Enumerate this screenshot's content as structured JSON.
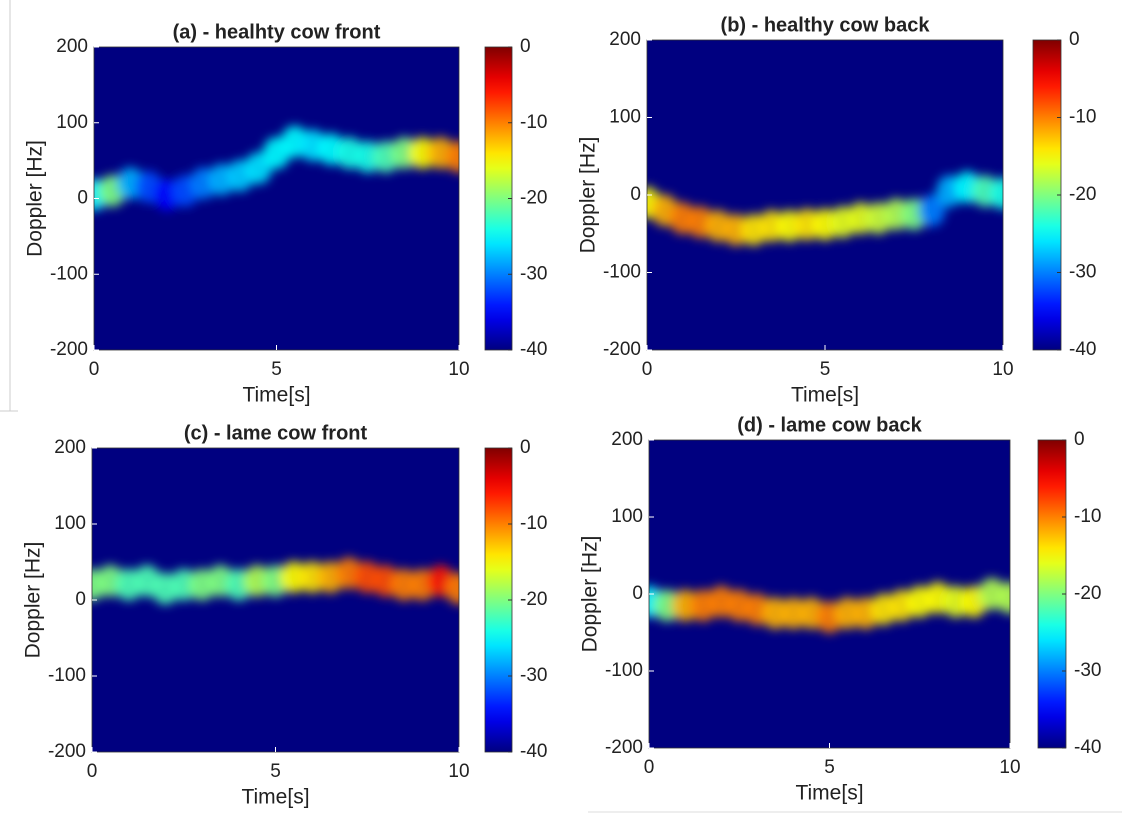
{
  "chart_data": [
    {
      "type": "spectrogram",
      "title": "(a) - healhty cow front",
      "xlabel": "Time[s]",
      "ylabel": "Doppler [Hz]",
      "xlim": [
        0,
        10
      ],
      "ylim": [
        -200,
        200
      ],
      "xticks": [
        0,
        5,
        10
      ],
      "yticks": [
        -200,
        -100,
        0,
        100,
        200
      ],
      "clim": [
        -40,
        0
      ],
      "cticks": [
        -40,
        -30,
        -20,
        -10,
        0
      ],
      "colormap": "jet",
      "x": [
        0,
        0.5,
        1,
        1.5,
        2,
        2.5,
        3,
        3.5,
        4,
        4.5,
        5,
        5.5,
        6,
        6.5,
        7,
        7.5,
        8,
        8.5,
        9,
        9.5,
        10
      ],
      "values": [
        5,
        10,
        20,
        15,
        5,
        10,
        20,
        25,
        30,
        40,
        60,
        75,
        70,
        65,
        60,
        55,
        55,
        60,
        60,
        60,
        55
      ],
      "levels": [
        -25,
        -20,
        -28,
        -32,
        -35,
        -32,
        -30,
        -28,
        -27,
        -26,
        -25,
        -25,
        -26,
        -25,
        -24,
        -24,
        -22,
        -20,
        -15,
        -12,
        -10
      ]
    },
    {
      "type": "spectrogram",
      "title": "(b) - healthy cow back",
      "xlabel": "Time[s]",
      "ylabel": "Doppler [Hz]",
      "xlim": [
        0,
        10
      ],
      "ylim": [
        -200,
        200
      ],
      "xticks": [
        0,
        5,
        10
      ],
      "yticks": [
        -200,
        -100,
        0,
        100,
        200
      ],
      "clim": [
        -40,
        0
      ],
      "cticks": [
        -40,
        -30,
        -20,
        -10,
        0
      ],
      "colormap": "jet",
      "x": [
        0,
        0.5,
        1,
        1.5,
        2,
        2.5,
        3,
        3.5,
        4,
        4.5,
        5,
        5.5,
        6,
        6.5,
        7,
        7.5,
        8,
        8.5,
        9,
        9.5,
        10
      ],
      "values": [
        -10,
        -20,
        -30,
        -35,
        -40,
        -45,
        -45,
        -40,
        -40,
        -38,
        -38,
        -35,
        -30,
        -30,
        -25,
        -25,
        -20,
        5,
        10,
        5,
        2
      ],
      "levels": [
        -15,
        -12,
        -10,
        -10,
        -12,
        -12,
        -14,
        -14,
        -15,
        -14,
        -15,
        -16,
        -16,
        -17,
        -18,
        -20,
        -30,
        -28,
        -25,
        -22,
        -24
      ]
    },
    {
      "type": "spectrogram",
      "title": "(c) - lame cow front",
      "xlabel": "Time[s]",
      "ylabel": "Doppler [Hz]",
      "xlim": [
        0,
        10
      ],
      "ylim": [
        -200,
        200
      ],
      "xticks": [
        0,
        5,
        10
      ],
      "yticks": [
        -200,
        -100,
        0,
        100,
        200
      ],
      "clim": [
        -40,
        0
      ],
      "cticks": [
        -40,
        -30,
        -20,
        -10,
        0
      ],
      "colormap": "jet",
      "x": [
        0,
        0.5,
        1,
        1.5,
        2,
        2.5,
        3,
        3.5,
        4,
        4.5,
        5,
        5.5,
        6,
        6.5,
        7,
        7.5,
        8,
        8.5,
        9,
        9.5,
        10
      ],
      "values": [
        20,
        25,
        20,
        25,
        15,
        20,
        20,
        25,
        20,
        25,
        25,
        30,
        30,
        30,
        35,
        30,
        25,
        20,
        20,
        25,
        15
      ],
      "levels": [
        -20,
        -20,
        -22,
        -22,
        -22,
        -22,
        -20,
        -20,
        -22,
        -18,
        -20,
        -15,
        -14,
        -12,
        -10,
        -8,
        -8,
        -10,
        -10,
        -6,
        -10
      ]
    },
    {
      "type": "spectrogram",
      "title": "(d) - lame cow back",
      "xlabel": "Time[s]",
      "ylabel": "Doppler [Hz]",
      "xlim": [
        0,
        10
      ],
      "ylim": [
        -200,
        200
      ],
      "xticks": [
        0,
        5,
        10
      ],
      "yticks": [
        -200,
        -100,
        0,
        100,
        200
      ],
      "clim": [
        -40,
        0
      ],
      "cticks": [
        -40,
        -30,
        -20,
        -10,
        0
      ],
      "colormap": "jet",
      "x": [
        0,
        0.5,
        1,
        1.5,
        2,
        2.5,
        3,
        3.5,
        4,
        4.5,
        5,
        5.5,
        6,
        6.5,
        7,
        7.5,
        8,
        8.5,
        9,
        9.5,
        10
      ],
      "values": [
        -10,
        -15,
        -15,
        -15,
        -10,
        -15,
        -20,
        -25,
        -25,
        -25,
        -30,
        -25,
        -25,
        -20,
        -15,
        -10,
        -5,
        -10,
        -10,
        0,
        -5
      ],
      "levels": [
        -25,
        -20,
        -12,
        -10,
        -10,
        -10,
        -10,
        -12,
        -12,
        -12,
        -10,
        -12,
        -12,
        -14,
        -14,
        -15,
        -15,
        -16,
        -15,
        -18,
        -18
      ]
    }
  ]
}
